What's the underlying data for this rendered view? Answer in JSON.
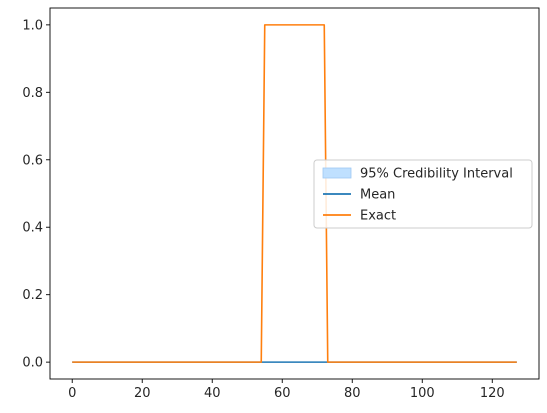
{
  "chart_data": {
    "type": "line",
    "title": "",
    "xlabel": "",
    "ylabel": "",
    "xlim": [
      -6.35,
      133.35
    ],
    "ylim": [
      -0.05,
      1.05
    ],
    "xticks": [
      0,
      20,
      40,
      60,
      80,
      100,
      120
    ],
    "yticks": [
      0.0,
      0.2,
      0.4,
      0.6,
      0.8,
      1.0
    ],
    "xtick_labels": [
      "0",
      "20",
      "40",
      "60",
      "80",
      "100",
      "120"
    ],
    "ytick_labels": [
      "0.0",
      "0.2",
      "0.4",
      "0.6",
      "0.8",
      "1.0"
    ],
    "grid": false,
    "legend_position": "center-right",
    "series": [
      {
        "name": "95% Credibility Interval",
        "kind": "band",
        "color": "#bfe0ff",
        "x": [
          0,
          127
        ],
        "lower": [
          0,
          0
        ],
        "upper": [
          0.002,
          0.002
        ]
      },
      {
        "name": "Mean",
        "kind": "line",
        "color": "#1f77b4",
        "x": [
          0,
          127
        ],
        "y": [
          0.0,
          0.0
        ]
      },
      {
        "name": "Exact",
        "kind": "line",
        "color": "#ff7f0e",
        "x": [
          0,
          54,
          55,
          72,
          73,
          127
        ],
        "y": [
          0.0,
          0.0,
          1.0,
          1.0,
          0.0,
          0.0
        ]
      }
    ]
  }
}
